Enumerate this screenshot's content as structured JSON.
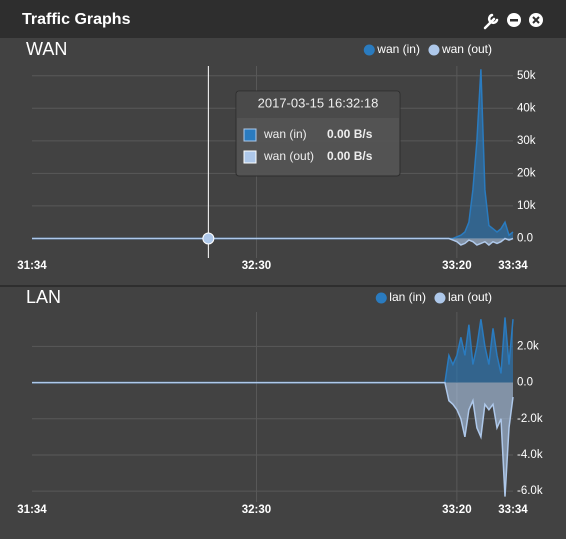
{
  "widget": {
    "title": "Traffic Graphs"
  },
  "chart_data": [
    {
      "type": "area",
      "title": "WAN",
      "x": [
        1894,
        1998,
        1999,
        2000,
        2001,
        2002,
        2003,
        2004,
        2005,
        2006,
        2007,
        2008,
        2009,
        2010,
        2011,
        2012,
        2013,
        2014
      ],
      "series": [
        {
          "name": "wan (in)",
          "color": "#2a7bbf",
          "values": [
            0,
            0,
            0,
            500,
            1000,
            2000,
            5000,
            15000,
            30000,
            52000,
            15000,
            4000,
            3000,
            2000,
            3000,
            5000,
            1000,
            2000
          ]
        },
        {
          "name": "wan (out)",
          "color": "#aec8ea",
          "values": [
            0,
            0,
            -500,
            -1000,
            -2000,
            -1500,
            -500,
            -1000,
            -2000,
            -1500,
            -1000,
            -2000,
            -1000,
            -1500,
            -1000,
            0,
            -500,
            0
          ]
        }
      ],
      "xlim": [
        1894,
        2014
      ],
      "xticks": [
        {
          "value": 1894,
          "label": "31:34"
        },
        {
          "value": 1950,
          "label": "32:30"
        },
        {
          "value": 2000,
          "label": "33:20"
        },
        {
          "value": 2014,
          "label": "33:34"
        }
      ],
      "ylim": [
        -6000,
        53000
      ],
      "yticks": [
        {
          "value": 0,
          "label": "0.0"
        },
        {
          "value": 10000,
          "label": "10k"
        },
        {
          "value": 20000,
          "label": "20k"
        },
        {
          "value": 30000,
          "label": "30k"
        },
        {
          "value": 40000,
          "label": "40k"
        },
        {
          "value": 50000,
          "label": "50k"
        }
      ],
      "grid": true,
      "legend": "top-right",
      "tooltip": {
        "x": 1938,
        "time": "2017-03-15 16:32:18",
        "value_labels": [
          "0.00 B/s",
          "0.00 B/s"
        ]
      }
    },
    {
      "type": "area",
      "title": "LAN",
      "x": [
        1894,
        1997,
        1998,
        1999,
        2000,
        2001,
        2002,
        2003,
        2004,
        2005,
        2006,
        2007,
        2008,
        2009,
        2010,
        2011,
        2012,
        2013,
        2014
      ],
      "series": [
        {
          "name": "lan (in)",
          "color": "#2a7bbf",
          "values": [
            0,
            0,
            1500,
            1000,
            1500,
            2500,
            1500,
            3200,
            1000,
            2000,
            3500,
            2000,
            1000,
            3000,
            1500,
            500,
            3600,
            1000,
            3500
          ]
        },
        {
          "name": "lan (out)",
          "color": "#aec8ea",
          "values": [
            0,
            0,
            -1000,
            -1200,
            -1500,
            -2000,
            -3000,
            -1500,
            -1000,
            -2500,
            -3000,
            -1200,
            -1500,
            -1200,
            -2500,
            -2000,
            -6300,
            -2500,
            -800
          ]
        }
      ],
      "xlim": [
        1894,
        2014
      ],
      "xticks": [
        {
          "value": 1894,
          "label": "31:34"
        },
        {
          "value": 1950,
          "label": "32:30"
        },
        {
          "value": 2000,
          "label": "33:20"
        },
        {
          "value": 2014,
          "label": "33:34"
        }
      ],
      "ylim": [
        -6600,
        3900
      ],
      "yticks": [
        {
          "value": -6000,
          "label": "-6.0k"
        },
        {
          "value": -4000,
          "label": "-4.0k"
        },
        {
          "value": -2000,
          "label": "-2.0k"
        },
        {
          "value": 0,
          "label": "0.0"
        },
        {
          "value": 2000,
          "label": "2.0k"
        }
      ],
      "grid": true,
      "legend": "top-right"
    }
  ]
}
